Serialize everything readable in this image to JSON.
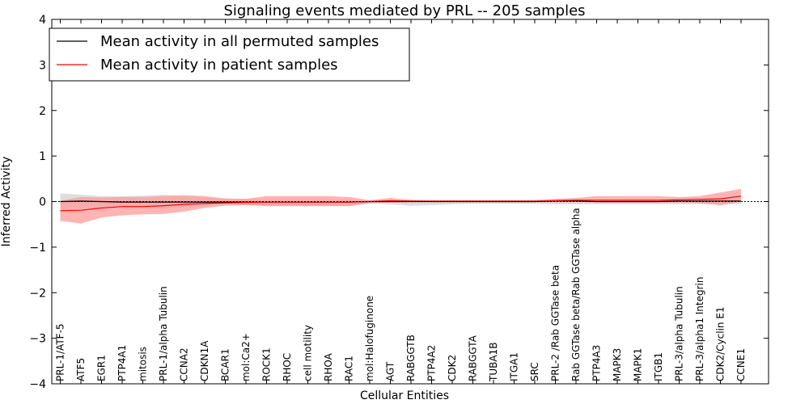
{
  "chart_data": {
    "type": "line",
    "title": "Signaling events mediated by PRL -- 205 samples",
    "xlabel": "Cellular Entities",
    "ylabel": "Inferred Activity",
    "ylim": [
      -4,
      4
    ],
    "yticks": [
      4,
      3,
      2,
      1,
      0,
      -1,
      -2,
      -3,
      -4
    ],
    "ytick_labels": [
      "4",
      "3",
      "2",
      "1",
      "0",
      "−1",
      "−2",
      "−3",
      "−4"
    ],
    "grid": false,
    "legend_position": "top-left",
    "categories": [
      "PRL-1/ATF-5",
      "ATF5",
      "EGR1",
      "PTP4A1",
      "mitosis",
      "PRL-1/alpha Tubulin",
      "CCNA2",
      "CDKN1A",
      "BCAR1",
      "mol:Ca2+",
      "ROCK1",
      "RHOC",
      "cell motility",
      "RHOA",
      "RAC1",
      "mol:Halofuginone",
      "AGT",
      "RABGGTB",
      "PTP4A2",
      "CDK2",
      "RABGGTA",
      "TUBA1B",
      "ITGA1",
      "SRC",
      "PRL-2 /Rab GGTase beta",
      "Rab GGTase beta/Rab GGTase alpha",
      "PTP4A3",
      "MAPK3",
      "MAPK1",
      "ITGB1",
      "PRL-3/alpha Tubulin",
      "PRL-3/alpha1 Integrin",
      "CDK2/Cyclin E1",
      "CCNE1"
    ],
    "series": [
      {
        "name": "Mean activity in all permuted samples",
        "color": "#000000",
        "values": [
          0.0,
          0.01,
          0.0,
          -0.01,
          -0.01,
          -0.01,
          -0.01,
          -0.01,
          -0.01,
          -0.01,
          -0.01,
          -0.01,
          -0.01,
          -0.01,
          -0.01,
          0.0,
          0.0,
          0.0,
          0.0,
          0.0,
          0.0,
          0.0,
          0.0,
          0.0,
          0.01,
          0.01,
          0.0,
          0.0,
          0.0,
          0.0,
          0.01,
          0.01,
          0.01,
          0.01
        ],
        "band_upper": [
          0.18,
          0.15,
          0.12,
          0.12,
          0.13,
          0.15,
          0.12,
          0.09,
          0.06,
          0.06,
          0.05,
          0.05,
          0.05,
          0.05,
          0.04,
          0.02,
          0.02,
          0.03,
          0.03,
          0.03,
          0.03,
          0.03,
          0.03,
          0.04,
          0.06,
          0.06,
          0.05,
          0.05,
          0.05,
          0.05,
          0.06,
          0.06,
          0.06,
          0.07
        ],
        "band_lower": [
          -0.18,
          -0.15,
          -0.12,
          -0.12,
          -0.13,
          -0.15,
          -0.12,
          -0.09,
          -0.07,
          -0.08,
          -0.09,
          -0.1,
          -0.1,
          -0.1,
          -0.1,
          -0.04,
          -0.06,
          -0.09,
          -0.08,
          -0.06,
          -0.05,
          -0.05,
          -0.05,
          -0.05,
          -0.06,
          -0.06,
          -0.06,
          -0.06,
          -0.06,
          -0.06,
          -0.06,
          -0.06,
          -0.06,
          -0.06
        ]
      },
      {
        "name": "Mean activity in patient samples",
        "color": "#ff0000",
        "band_color": "#ff9999",
        "values": [
          -0.2,
          -0.19,
          -0.14,
          -0.11,
          -0.11,
          -0.09,
          -0.06,
          -0.04,
          -0.03,
          -0.02,
          -0.01,
          -0.01,
          -0.01,
          -0.01,
          -0.01,
          0.0,
          0.02,
          0.01,
          0.01,
          0.01,
          0.01,
          0.01,
          0.01,
          0.01,
          0.02,
          0.03,
          0.03,
          0.03,
          0.03,
          0.03,
          0.04,
          0.05,
          0.06,
          0.12
        ],
        "band_upper": [
          0.02,
          0.1,
          0.09,
          0.1,
          0.1,
          0.12,
          0.14,
          0.12,
          0.07,
          0.06,
          0.12,
          0.12,
          0.12,
          0.12,
          0.1,
          0.03,
          0.08,
          0.04,
          0.02,
          0.02,
          0.02,
          0.02,
          0.02,
          0.02,
          0.06,
          0.08,
          0.12,
          0.12,
          0.12,
          0.12,
          0.1,
          0.12,
          0.2,
          0.28
        ],
        "band_lower": [
          -0.42,
          -0.48,
          -0.35,
          -0.3,
          -0.28,
          -0.27,
          -0.22,
          -0.14,
          -0.09,
          -0.08,
          -0.1,
          -0.1,
          -0.1,
          -0.1,
          -0.1,
          -0.03,
          -0.02,
          -0.01,
          0.0,
          0.0,
          0.0,
          0.0,
          0.0,
          0.0,
          0.0,
          0.0,
          -0.02,
          -0.02,
          -0.02,
          -0.02,
          -0.02,
          -0.03,
          -0.08,
          0.0
        ]
      }
    ]
  }
}
